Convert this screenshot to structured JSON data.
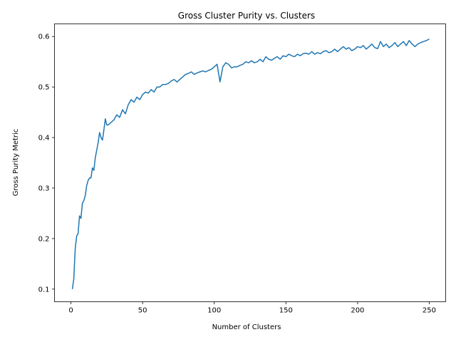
{
  "chart_data": {
    "type": "line",
    "title": "Gross Cluster Purity vs. Clusters",
    "xlabel": "Number of Clusters",
    "ylabel": "Gross Purity Metric",
    "xlim": [
      -11.45,
      261.45
    ],
    "ylim": [
      0.075,
      0.625
    ],
    "xticks": [
      0,
      50,
      100,
      150,
      200,
      250
    ],
    "yticks": [
      0.1,
      0.2,
      0.3,
      0.4,
      0.5,
      0.6
    ],
    "xtick_labels": [
      "0",
      "50",
      "100",
      "150",
      "200",
      "250"
    ],
    "ytick_labels": [
      "0.1",
      "0.2",
      "0.3",
      "0.4",
      "0.5",
      "0.6"
    ],
    "grid": false,
    "line_color": "#1f77b4",
    "series": [
      {
        "x": [
          1,
          2,
          3,
          4,
          5,
          6,
          7,
          8,
          9,
          10,
          11,
          12,
          13,
          14,
          15,
          16,
          17,
          18,
          19,
          20,
          21,
          22,
          23,
          24,
          25,
          26,
          28,
          30,
          32,
          34,
          36,
          38,
          40,
          42,
          44,
          46,
          48,
          50,
          52,
          54,
          56,
          58,
          60,
          62,
          64,
          66,
          68,
          70,
          72,
          74,
          76,
          78,
          80,
          82,
          84,
          86,
          88,
          90,
          92,
          94,
          96,
          98,
          100,
          102,
          104,
          106,
          108,
          110,
          112,
          114,
          116,
          118,
          120,
          122,
          124,
          126,
          128,
          130,
          132,
          134,
          136,
          138,
          140,
          142,
          144,
          146,
          148,
          150,
          152,
          154,
          156,
          158,
          160,
          162,
          164,
          166,
          168,
          170,
          172,
          174,
          176,
          178,
          180,
          182,
          184,
          186,
          188,
          190,
          192,
          194,
          196,
          198,
          200,
          202,
          204,
          206,
          208,
          210,
          212,
          214,
          216,
          218,
          220,
          222,
          224,
          226,
          228,
          230,
          232,
          234,
          236,
          238,
          240,
          242,
          244,
          246,
          248,
          250
        ],
        "y": [
          0.1,
          0.12,
          0.18,
          0.205,
          0.21,
          0.245,
          0.24,
          0.27,
          0.275,
          0.285,
          0.305,
          0.315,
          0.32,
          0.32,
          0.34,
          0.335,
          0.36,
          0.375,
          0.39,
          0.41,
          0.4,
          0.395,
          0.415,
          0.437,
          0.425,
          0.425,
          0.43,
          0.435,
          0.445,
          0.44,
          0.455,
          0.447,
          0.465,
          0.475,
          0.47,
          0.48,
          0.475,
          0.485,
          0.49,
          0.488,
          0.495,
          0.49,
          0.5,
          0.5,
          0.505,
          0.505,
          0.507,
          0.512,
          0.515,
          0.51,
          0.515,
          0.52,
          0.525,
          0.527,
          0.53,
          0.525,
          0.528,
          0.53,
          0.532,
          0.53,
          0.533,
          0.535,
          0.54,
          0.545,
          0.51,
          0.54,
          0.548,
          0.545,
          0.538,
          0.54,
          0.54,
          0.543,
          0.545,
          0.55,
          0.548,
          0.552,
          0.548,
          0.55,
          0.555,
          0.55,
          0.56,
          0.555,
          0.553,
          0.557,
          0.56,
          0.555,
          0.562,
          0.56,
          0.565,
          0.562,
          0.56,
          0.565,
          0.562,
          0.566,
          0.567,
          0.565,
          0.57,
          0.565,
          0.568,
          0.566,
          0.57,
          0.572,
          0.568,
          0.57,
          0.575,
          0.57,
          0.575,
          0.58,
          0.575,
          0.578,
          0.572,
          0.575,
          0.58,
          0.578,
          0.582,
          0.575,
          0.58,
          0.585,
          0.578,
          0.576,
          0.59,
          0.58,
          0.585,
          0.578,
          0.582,
          0.588,
          0.58,
          0.585,
          0.59,
          0.582,
          0.592,
          0.585,
          0.58,
          0.585,
          0.588,
          0.59,
          0.592,
          0.595
        ]
      }
    ]
  }
}
